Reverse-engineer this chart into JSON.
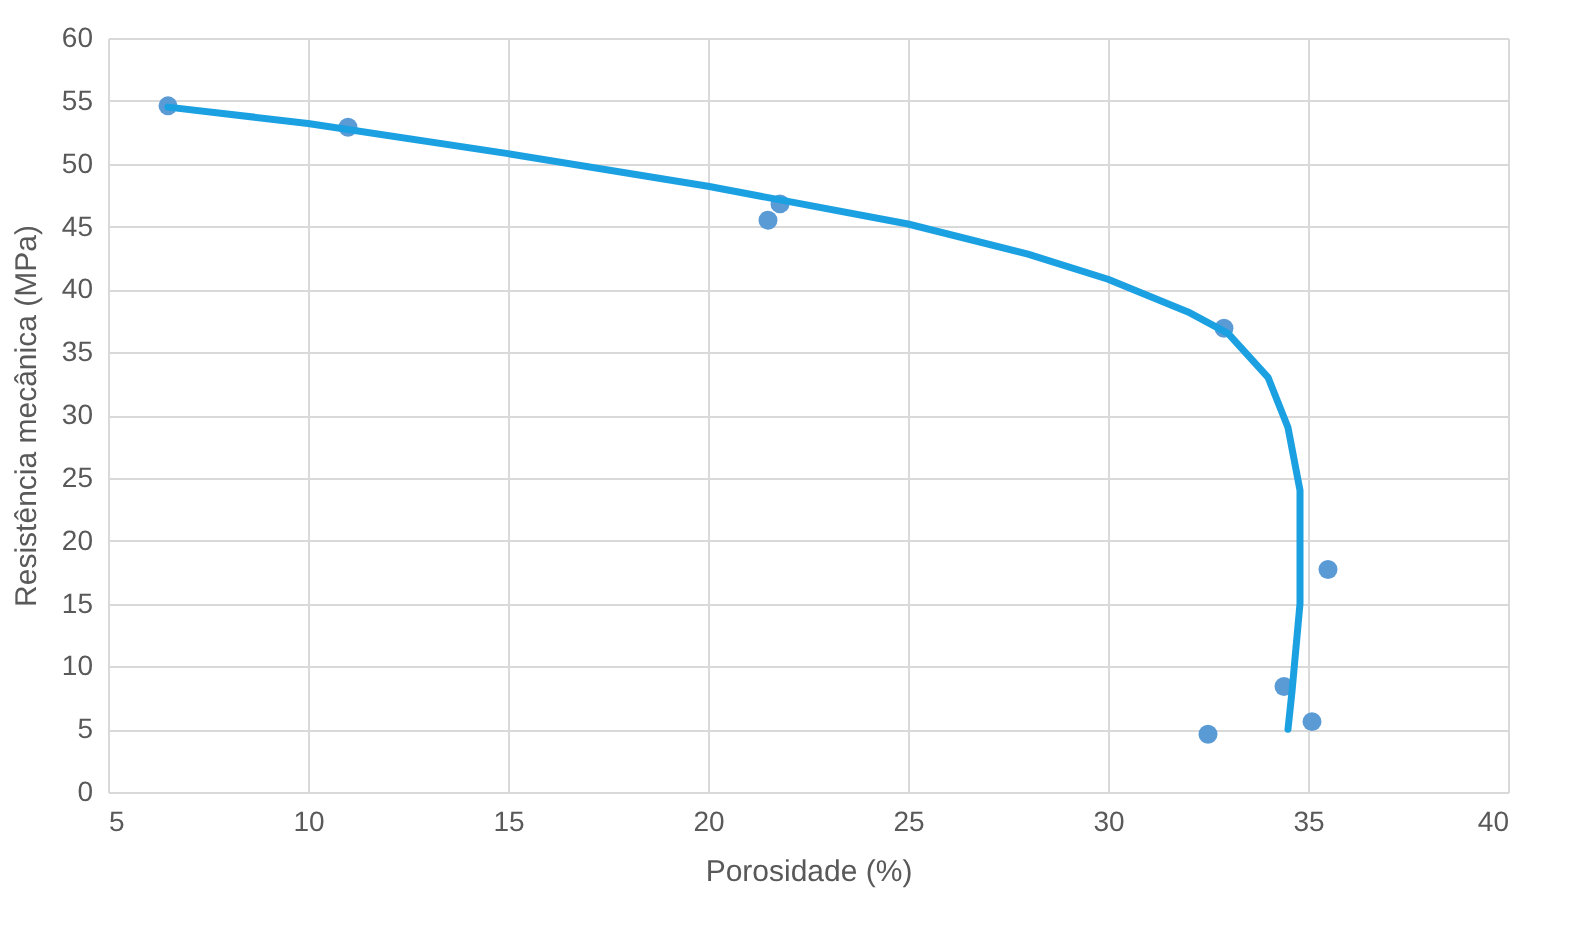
{
  "chart_data": {
    "type": "scatter",
    "xlabel": "Porosidade (%)",
    "ylabel": "Resistência mecânica (MPa)",
    "xlim": [
      5,
      40
    ],
    "xticks": [
      5,
      10,
      15,
      20,
      25,
      30,
      35,
      40
    ],
    "ylim": [
      0,
      60
    ],
    "yticks": [
      0,
      5,
      10,
      15,
      20,
      25,
      30,
      35,
      40,
      45,
      50,
      55,
      60
    ],
    "grid": true,
    "series": [
      {
        "type": "scatter",
        "marker": "circle",
        "color": "#5b9bd5",
        "x": [
          6.5,
          11.0,
          21.5,
          21.8,
          32.9,
          32.5,
          34.4,
          35.1,
          35.5
        ],
        "values": [
          54.6,
          52.9,
          45.5,
          46.8,
          36.9,
          4.6,
          8.4,
          5.6,
          17.7
        ]
      },
      {
        "type": "line",
        "color": "#1ba1e2",
        "x": [
          6.5,
          10,
          15,
          20,
          22,
          25,
          28,
          30,
          32,
          33,
          34,
          34.5,
          34.8,
          34.8,
          34.6,
          34.5
        ],
        "values": [
          54.5,
          53.2,
          50.8,
          48.2,
          47,
          45.2,
          42.8,
          40.8,
          38.2,
          36.5,
          33,
          29,
          24,
          15,
          8,
          5
        ]
      }
    ]
  }
}
